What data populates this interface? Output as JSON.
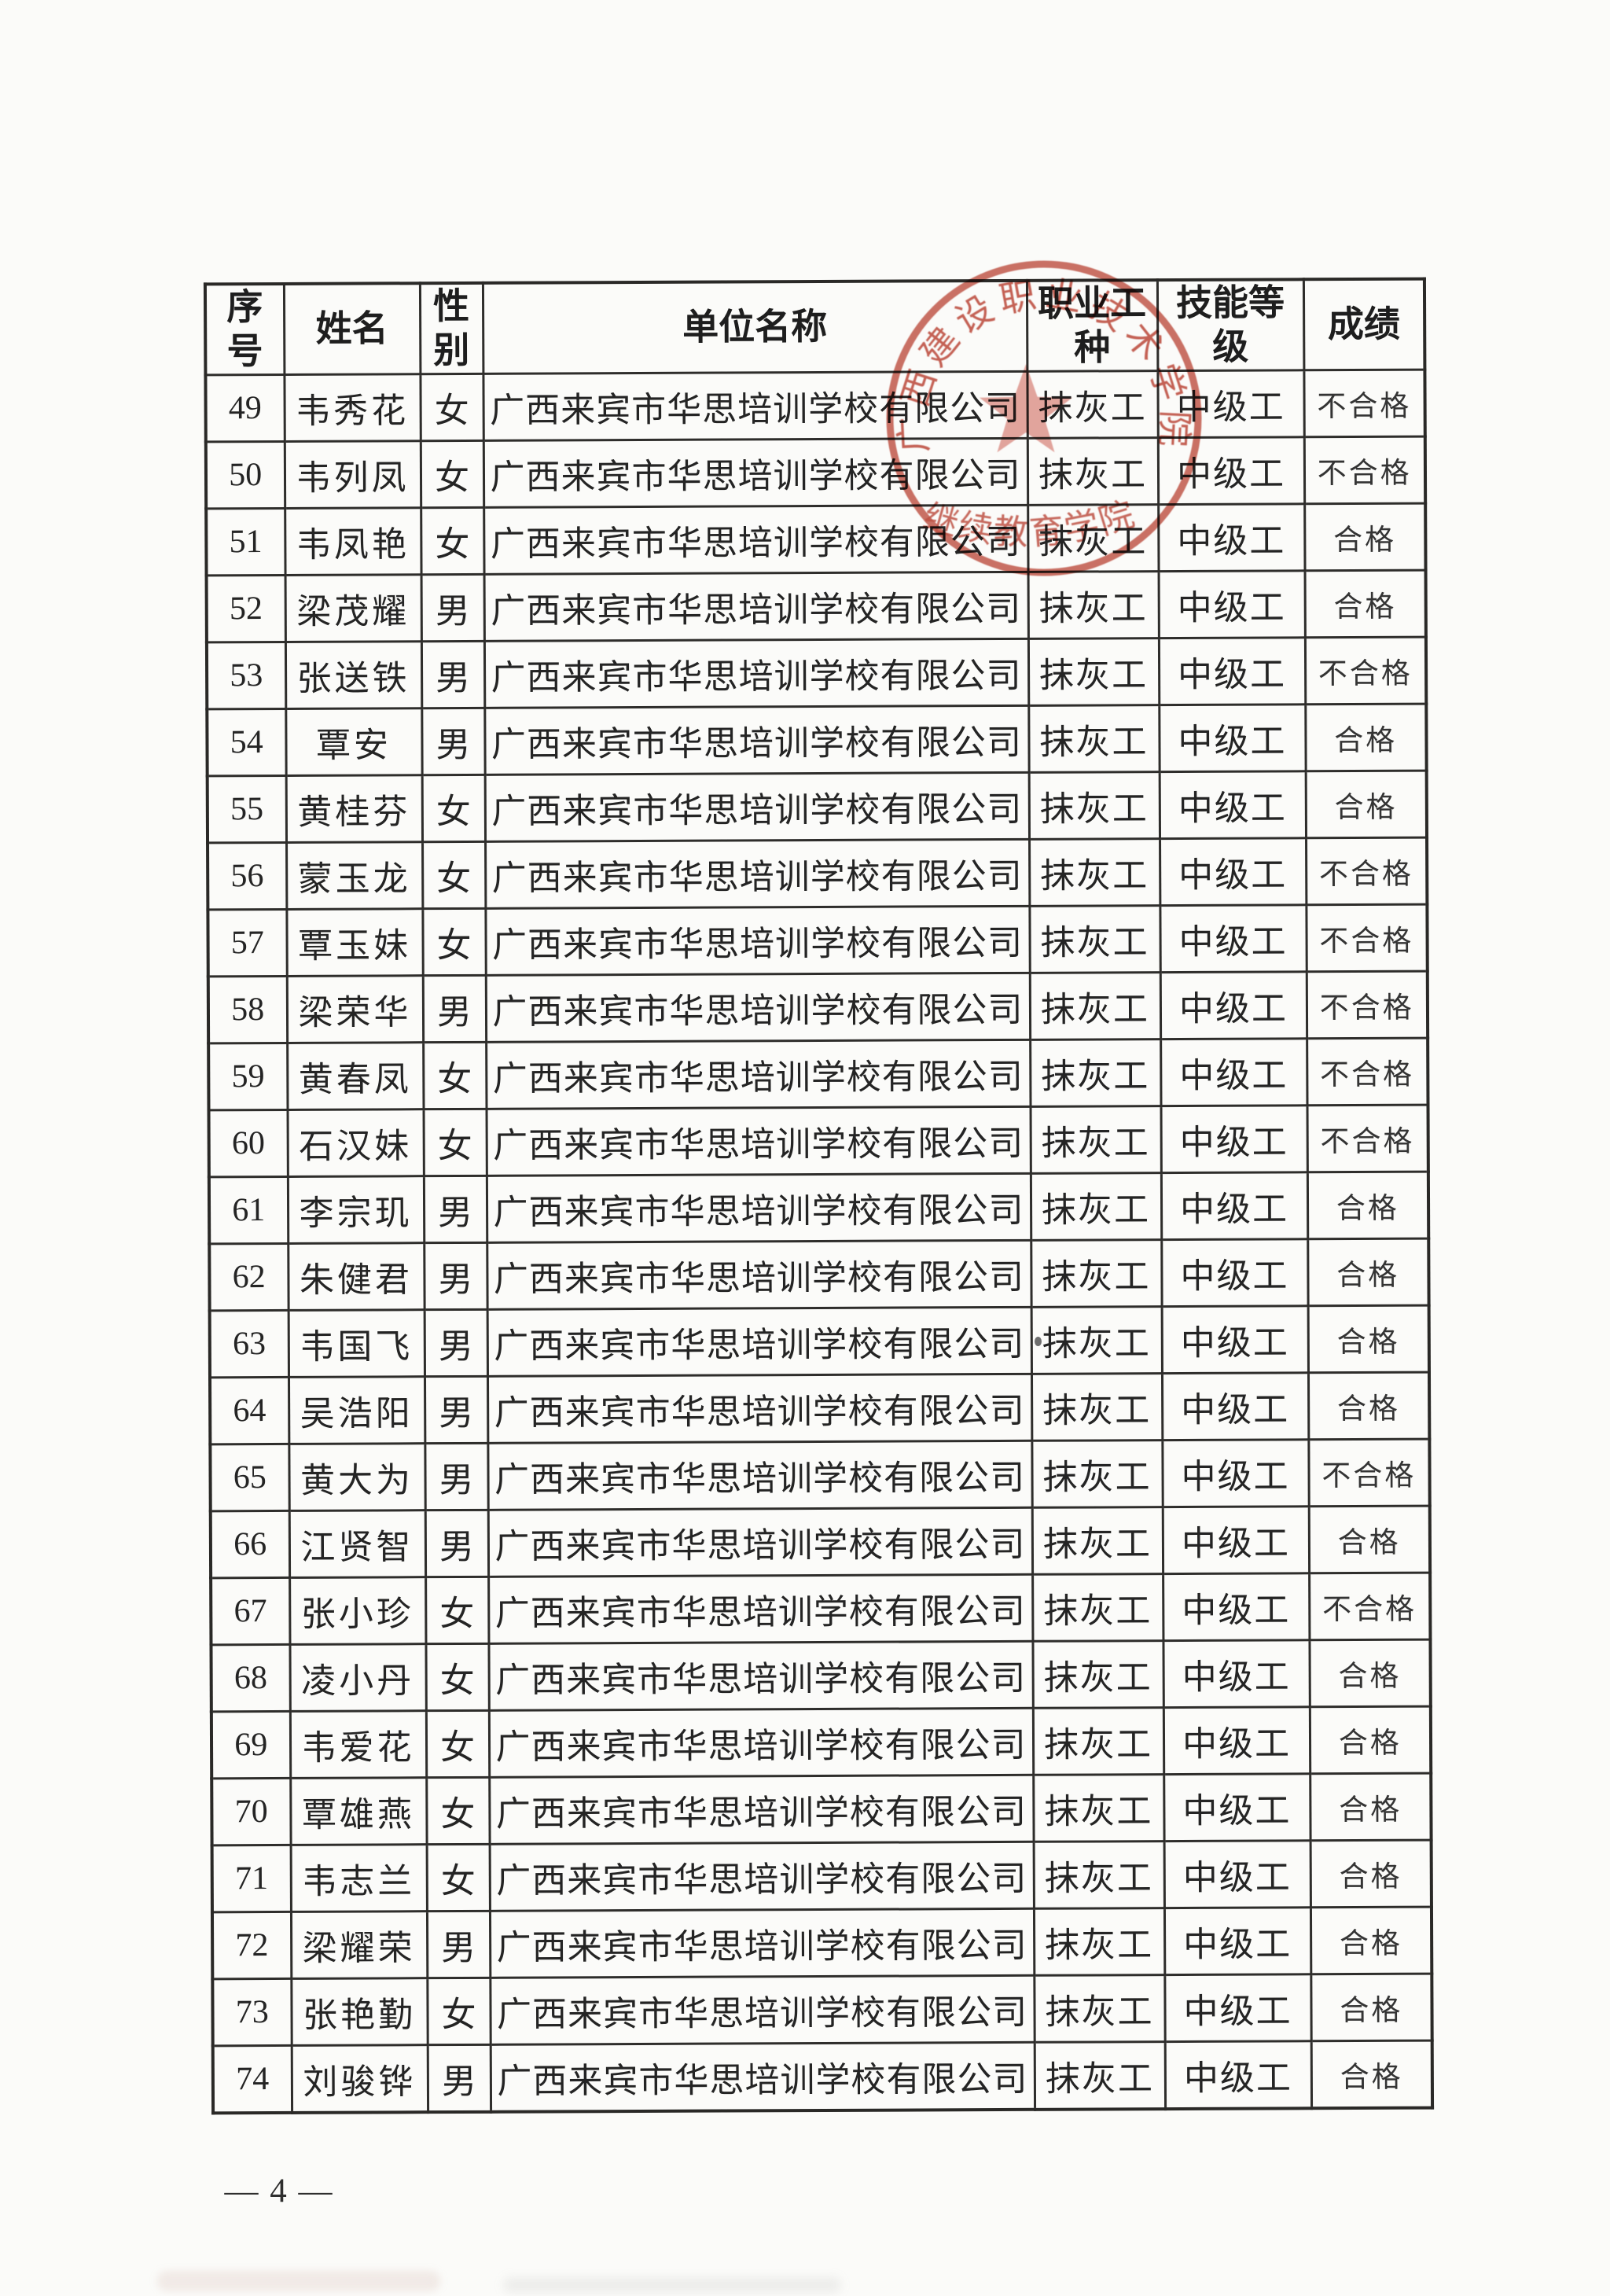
{
  "page": {
    "number_label": "— 4 —"
  },
  "colors": {
    "ink": "#242424",
    "table_line": "#2e2d2b",
    "stamp_red": "#b8392a"
  },
  "table": {
    "headers": [
      {
        "id": "no",
        "label": "序号"
      },
      {
        "id": "name",
        "label": "姓名"
      },
      {
        "id": "gender",
        "label": "性别"
      },
      {
        "id": "company",
        "label": "单位名称"
      },
      {
        "id": "occupation",
        "label": "职业工种"
      },
      {
        "id": "level",
        "label": "技能等级"
      },
      {
        "id": "score",
        "label": "成绩"
      }
    ],
    "rows": [
      {
        "no": "49",
        "name": "韦秀花",
        "gender": "女",
        "company": "广西来宾市华思培训学校有限公司",
        "occupation": "抹灰工",
        "level": "中级工",
        "score": "不合格"
      },
      {
        "no": "50",
        "name": "韦列凤",
        "gender": "女",
        "company": "广西来宾市华思培训学校有限公司",
        "occupation": "抹灰工",
        "level": "中级工",
        "score": "不合格"
      },
      {
        "no": "51",
        "name": "韦凤艳",
        "gender": "女",
        "company": "广西来宾市华思培训学校有限公司",
        "occupation": "抹灰工",
        "level": "中级工",
        "score": "合格"
      },
      {
        "no": "52",
        "name": "梁茂耀",
        "gender": "男",
        "company": "广西来宾市华思培训学校有限公司",
        "occupation": "抹灰工",
        "level": "中级工",
        "score": "合格"
      },
      {
        "no": "53",
        "name": "张送铁",
        "gender": "男",
        "company": "广西来宾市华思培训学校有限公司",
        "occupation": "抹灰工",
        "level": "中级工",
        "score": "不合格"
      },
      {
        "no": "54",
        "name": "覃安",
        "gender": "男",
        "company": "广西来宾市华思培训学校有限公司",
        "occupation": "抹灰工",
        "level": "中级工",
        "score": "合格"
      },
      {
        "no": "55",
        "name": "黄桂芬",
        "gender": "女",
        "company": "广西来宾市华思培训学校有限公司",
        "occupation": "抹灰工",
        "level": "中级工",
        "score": "合格"
      },
      {
        "no": "56",
        "name": "蒙玉龙",
        "gender": "女",
        "company": "广西来宾市华思培训学校有限公司",
        "occupation": "抹灰工",
        "level": "中级工",
        "score": "不合格"
      },
      {
        "no": "57",
        "name": "覃玉妹",
        "gender": "女",
        "company": "广西来宾市华思培训学校有限公司",
        "occupation": "抹灰工",
        "level": "中级工",
        "score": "不合格"
      },
      {
        "no": "58",
        "name": "梁荣华",
        "gender": "男",
        "company": "广西来宾市华思培训学校有限公司",
        "occupation": "抹灰工",
        "level": "中级工",
        "score": "不合格"
      },
      {
        "no": "59",
        "name": "黄春凤",
        "gender": "女",
        "company": "广西来宾市华思培训学校有限公司",
        "occupation": "抹灰工",
        "level": "中级工",
        "score": "不合格"
      },
      {
        "no": "60",
        "name": "石汉妹",
        "gender": "女",
        "company": "广西来宾市华思培训学校有限公司",
        "occupation": "抹灰工",
        "level": "中级工",
        "score": "不合格"
      },
      {
        "no": "61",
        "name": "李宗玑",
        "gender": "男",
        "company": "广西来宾市华思培训学校有限公司",
        "occupation": "抹灰工",
        "level": "中级工",
        "score": "合格"
      },
      {
        "no": "62",
        "name": "朱健君",
        "gender": "男",
        "company": "广西来宾市华思培训学校有限公司",
        "occupation": "抹灰工",
        "level": "中级工",
        "score": "合格"
      },
      {
        "no": "63",
        "name": "韦国飞",
        "gender": "男",
        "company": "广西来宾市华思培训学校有限公司",
        "occupation": "抹灰工",
        "level": "中级工",
        "score": "合格"
      },
      {
        "no": "64",
        "name": "吴浩阳",
        "gender": "男",
        "company": "广西来宾市华思培训学校有限公司",
        "occupation": "抹灰工",
        "level": "中级工",
        "score": "合格"
      },
      {
        "no": "65",
        "name": "黄大为",
        "gender": "男",
        "company": "广西来宾市华思培训学校有限公司",
        "occupation": "抹灰工",
        "level": "中级工",
        "score": "不合格"
      },
      {
        "no": "66",
        "name": "江贤智",
        "gender": "男",
        "company": "广西来宾市华思培训学校有限公司",
        "occupation": "抹灰工",
        "level": "中级工",
        "score": "合格"
      },
      {
        "no": "67",
        "name": "张小珍",
        "gender": "女",
        "company": "广西来宾市华思培训学校有限公司",
        "occupation": "抹灰工",
        "level": "中级工",
        "score": "不合格"
      },
      {
        "no": "68",
        "name": "凌小丹",
        "gender": "女",
        "company": "广西来宾市华思培训学校有限公司",
        "occupation": "抹灰工",
        "level": "中级工",
        "score": "合格"
      },
      {
        "no": "69",
        "name": "韦爱花",
        "gender": "女",
        "company": "广西来宾市华思培训学校有限公司",
        "occupation": "抹灰工",
        "level": "中级工",
        "score": "合格"
      },
      {
        "no": "70",
        "name": "覃雄燕",
        "gender": "女",
        "company": "广西来宾市华思培训学校有限公司",
        "occupation": "抹灰工",
        "level": "中级工",
        "score": "合格"
      },
      {
        "no": "71",
        "name": "韦志兰",
        "gender": "女",
        "company": "广西来宾市华思培训学校有限公司",
        "occupation": "抹灰工",
        "level": "中级工",
        "score": "合格"
      },
      {
        "no": "72",
        "name": "梁耀荣",
        "gender": "男",
        "company": "广西来宾市华思培训学校有限公司",
        "occupation": "抹灰工",
        "level": "中级工",
        "score": "合格"
      },
      {
        "no": "73",
        "name": "张艳勤",
        "gender": "女",
        "company": "广西来宾市华思培训学校有限公司",
        "occupation": "抹灰工",
        "level": "中级工",
        "score": "合格"
      },
      {
        "no": "74",
        "name": "刘骏铧",
        "gender": "男",
        "company": "广西来宾市华思培训学校有限公司",
        "occupation": "抹灰工",
        "level": "中级工",
        "score": "合格"
      }
    ]
  },
  "stamp": {
    "arc_text": "广西建设职业技术学院",
    "bottom_text": "继续教育学院"
  }
}
